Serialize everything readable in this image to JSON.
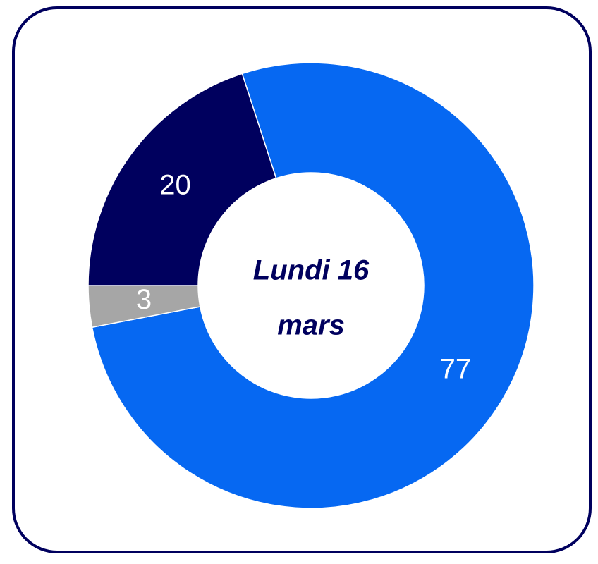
{
  "chart_data": {
    "type": "donut",
    "center_label": [
      "Lundi 16",
      "mars"
    ],
    "values": [
      77,
      3,
      20
    ],
    "colors": [
      "#0668f2",
      "#a6a6a6",
      "#00005e"
    ],
    "label_color": "#ffffff"
  }
}
